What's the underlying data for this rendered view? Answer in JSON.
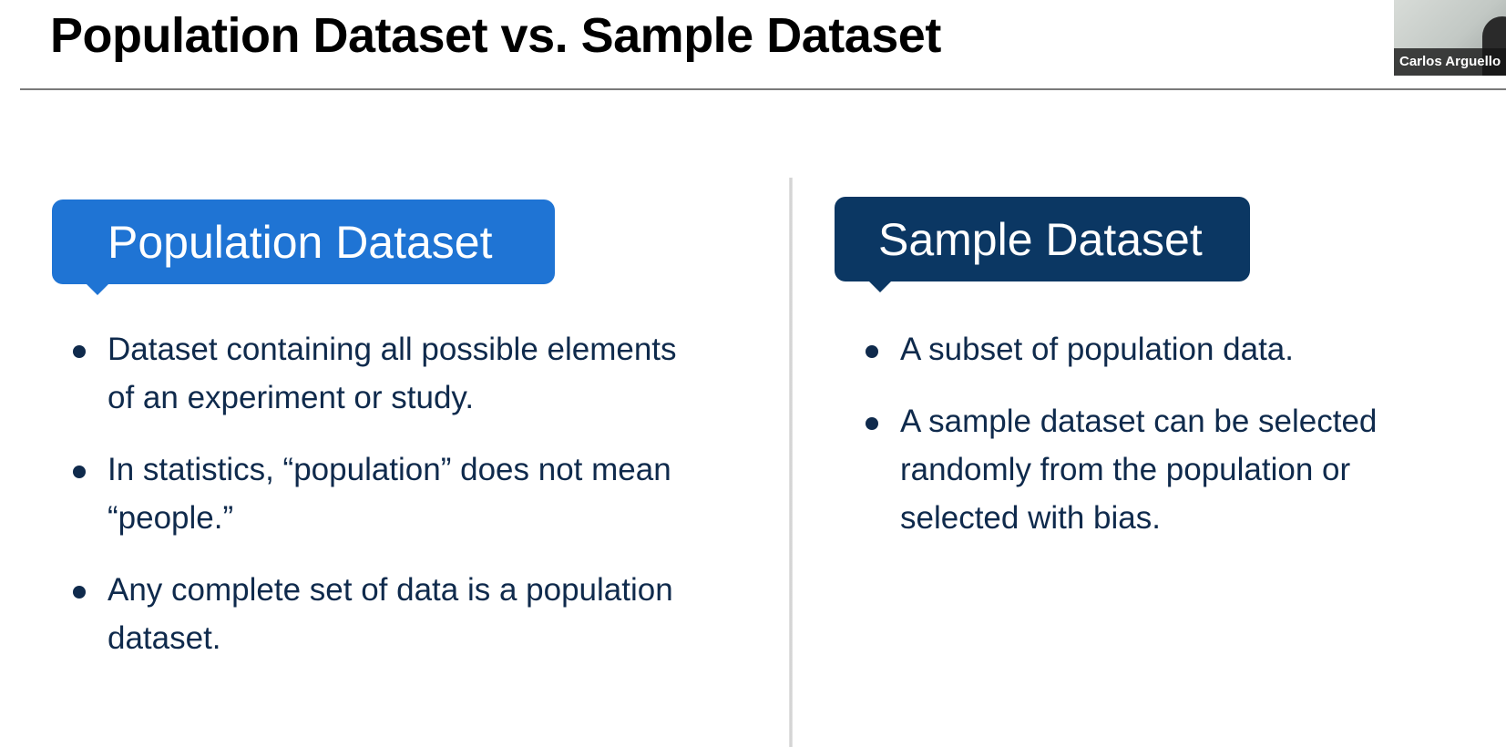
{
  "slide": {
    "title": "Population Dataset vs. Sample Dataset"
  },
  "population": {
    "header": "Population Dataset",
    "bullets": [
      "Dataset containing all possible elements of an experiment or study.",
      "In statistics, “population” does not mean “people.”",
      "Any complete set of data is a population dataset."
    ]
  },
  "sample": {
    "header": "Sample Dataset",
    "bullets": [
      "A subset of population data.",
      "A sample dataset can be selected randomly from the population or selected with bias."
    ]
  },
  "video_tile": {
    "participant_name": "Carlos Arguello"
  },
  "colors": {
    "population_header": "#1f74d4",
    "sample_header": "#0b3763",
    "bullet_text": "#0f2a4c"
  }
}
